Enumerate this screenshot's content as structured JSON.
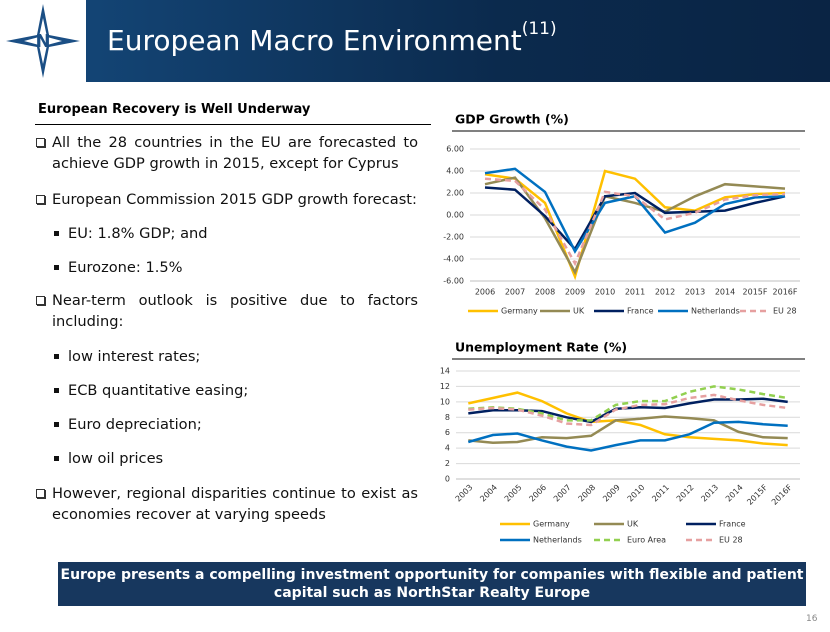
{
  "header": {
    "title": "European Macro Environment",
    "superscript": "(11)"
  },
  "left": {
    "subtitle": "European Recovery is Well Underway",
    "bullets": [
      {
        "level": 1,
        "text": "All the 28 countries in the EU are forecasted to achieve GDP growth in 2015, except for Cyprus"
      },
      {
        "level": 1,
        "text": "European Commission 2015 GDP growth forecast:"
      },
      {
        "level": 2,
        "text": "EU: 1.8% GDP; and"
      },
      {
        "level": 2,
        "text": "Eurozone: 1.5%"
      },
      {
        "level": 1,
        "text": "Near-term outlook is positive due to factors including:"
      },
      {
        "level": 2,
        "text": "low interest rates;"
      },
      {
        "level": 2,
        "text": "ECB quantitative easing;"
      },
      {
        "level": 2,
        "text": "Euro depreciation;"
      },
      {
        "level": 2,
        "text": "low oil prices"
      },
      {
        "level": 1,
        "text": "However, regional disparities continue to exist as economies recover at varying speeds"
      }
    ]
  },
  "chart_data": [
    {
      "type": "line",
      "title": "GDP Growth (%)",
      "grid": true,
      "legend": "bottom",
      "categories": [
        "2006",
        "2007",
        "2008",
        "2009",
        "2010",
        "2011",
        "2012",
        "2013",
        "2014",
        "2015F",
        "2016F"
      ],
      "ylim": [
        -6,
        6
      ],
      "yticks": [
        {
          "value": -6,
          "label": "-6.00"
        },
        {
          "value": -4,
          "label": "-4.00"
        },
        {
          "value": -2,
          "label": "-2.00"
        },
        {
          "value": 0,
          "label": "0.00"
        },
        {
          "value": 2,
          "label": "2.00"
        },
        {
          "value": 4,
          "label": "4.00"
        },
        {
          "value": 6,
          "label": "6.00"
        }
      ],
      "series": [
        {
          "name": "Germany",
          "color": "#FFC000",
          "dashed": false,
          "values": [
            3.7,
            3.3,
            1.1,
            -5.6,
            4.0,
            3.3,
            0.7,
            0.4,
            1.6,
            1.9,
            2.0
          ]
        },
        {
          "name": "UK",
          "color": "#948A54",
          "dashed": false,
          "values": [
            2.8,
            3.4,
            -0.3,
            -5.2,
            1.7,
            1.1,
            0.3,
            1.7,
            2.8,
            2.6,
            2.4
          ]
        },
        {
          "name": "France",
          "color": "#002060",
          "dashed": false,
          "values": [
            2.5,
            2.3,
            -0.1,
            -3.1,
            1.7,
            2.0,
            0.2,
            0.3,
            0.4,
            1.1,
            1.7
          ]
        },
        {
          "name": "Netherlands",
          "color": "#0070C0",
          "dashed": false,
          "values": [
            3.8,
            4.2,
            2.1,
            -3.3,
            1.1,
            1.7,
            -1.6,
            -0.7,
            1.0,
            1.6,
            1.7
          ]
        },
        {
          "name": "EU 28",
          "color": "#E6A0A0",
          "dashed": true,
          "values": [
            3.3,
            3.1,
            0.5,
            -4.4,
            2.1,
            1.7,
            -0.4,
            0.2,
            1.4,
            1.8,
            1.9
          ]
        }
      ]
    },
    {
      "type": "line",
      "title": "Unemployment Rate (%)",
      "grid": true,
      "legend": "bottom",
      "categories": [
        "2003",
        "2004",
        "2005",
        "2006",
        "2007",
        "2008",
        "2009",
        "2010",
        "2011",
        "2012",
        "2013",
        "2014",
        "2015F",
        "2016F"
      ],
      "ylim": [
        0,
        14
      ],
      "yticks": [
        0,
        2,
        4,
        6,
        8,
        10,
        12,
        14
      ],
      "series": [
        {
          "name": "Germany",
          "color": "#FFC000",
          "dashed": false,
          "values": [
            9.8,
            10.5,
            11.2,
            10.1,
            8.5,
            7.4,
            7.6,
            7.0,
            5.8,
            5.4,
            5.2,
            5.0,
            4.6,
            4.4
          ]
        },
        {
          "name": "UK",
          "color": "#948A54",
          "dashed": false,
          "values": [
            5.0,
            4.7,
            4.8,
            5.4,
            5.3,
            5.6,
            7.6,
            7.8,
            8.1,
            7.9,
            7.6,
            6.1,
            5.4,
            5.3
          ]
        },
        {
          "name": "France",
          "color": "#002060",
          "dashed": false,
          "values": [
            8.5,
            8.9,
            8.9,
            8.8,
            8.0,
            7.4,
            9.1,
            9.3,
            9.2,
            9.8,
            10.3,
            10.3,
            10.4,
            10.0
          ]
        },
        {
          "name": "Netherlands",
          "color": "#0070C0",
          "dashed": false,
          "values": [
            4.8,
            5.7,
            5.9,
            5.0,
            4.2,
            3.7,
            4.4,
            5.0,
            5.0,
            5.8,
            7.3,
            7.4,
            7.1,
            6.9
          ]
        },
        {
          "name": "Euro Area",
          "color": "#92D050",
          "dashed": true,
          "values": [
            9.1,
            9.3,
            9.1,
            8.5,
            7.6,
            7.6,
            9.6,
            10.1,
            10.1,
            11.3,
            12.0,
            11.6,
            11.0,
            10.5
          ]
        },
        {
          "name": "EU 28",
          "color": "#E6A0A0",
          "dashed": true,
          "values": [
            9.0,
            9.2,
            9.0,
            8.2,
            7.2,
            7.0,
            9.0,
            9.6,
            9.7,
            10.5,
            10.9,
            10.2,
            9.6,
            9.2
          ]
        }
      ]
    }
  ],
  "banner": "Europe presents a compelling investment opportunity for companies with flexible and patient capital such as NorthStar Realty Europe",
  "page_number": "16"
}
